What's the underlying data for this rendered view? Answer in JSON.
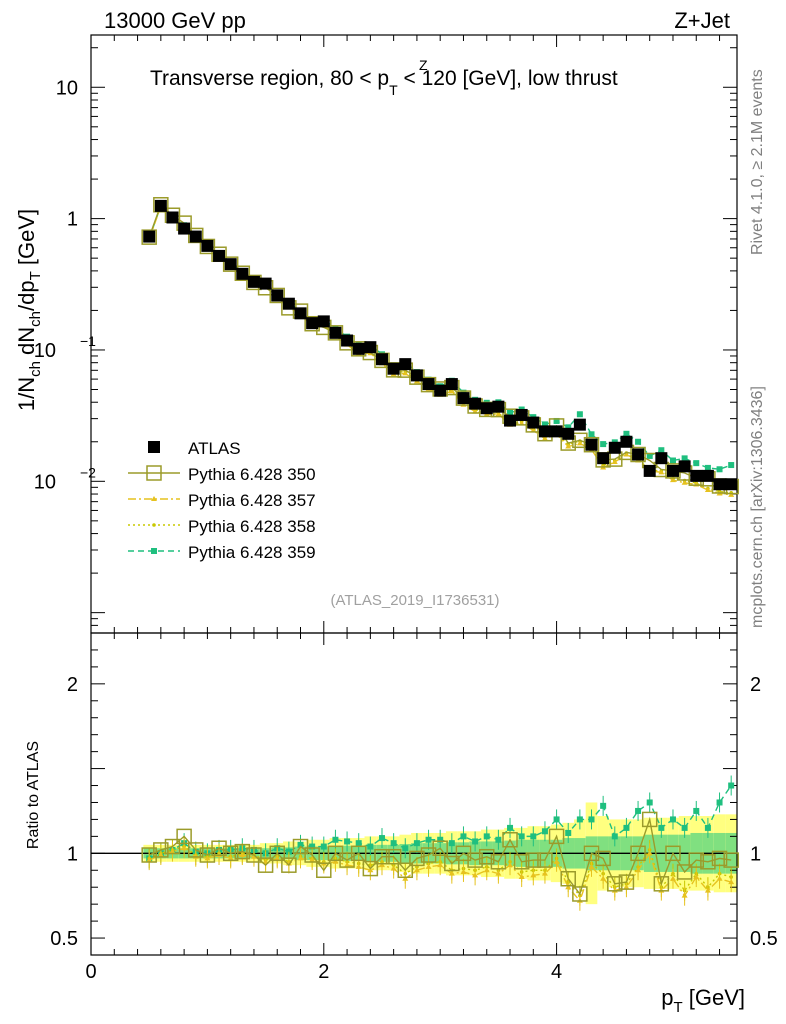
{
  "header": {
    "left": "13000 GeV pp",
    "right": "Z+Jet"
  },
  "side_texts": {
    "rivet": "Rivet 4.1.0, ≥ 2.1M events",
    "mcplots": "mcplots.cern.ch [arXiv:1306.3436]"
  },
  "chart_data": {
    "type": "scatter",
    "title_parts": {
      "pre": "Transverse region, 80 < p",
      "sup": "Z",
      "sub": "T",
      "post": " < 120 [GeV], low thrust"
    },
    "analysis_label": "(ATLAS_2019_I1736531)",
    "ylabel_main": "1/N_ch dN_ch/dp_T [GeV]",
    "ylabel_ratio": "Ratio to ATLAS",
    "xlabel": "p_T [GeV]",
    "xlim": [
      0,
      5.55
    ],
    "ylim_main_log": [
      0.0007,
      25
    ],
    "ylim_ratio": [
      0.4,
      2.3
    ],
    "x_ticks": [
      {
        "v": 0,
        "label": "0"
      },
      {
        "v": 2,
        "label": "2"
      },
      {
        "v": 4,
        "label": "4"
      }
    ],
    "y_ticks_main": [
      {
        "v": 10,
        "label": "10"
      },
      {
        "v": 1,
        "label": "1"
      },
      {
        "v": 0.1,
        "label": "10",
        "exp": "−1"
      },
      {
        "v": 0.01,
        "label": "10",
        "exp": "−2"
      }
    ],
    "y_ticks_ratio": [
      {
        "v": 2,
        "label": "2"
      },
      {
        "v": 1,
        "label": "1"
      },
      {
        "v": 0.5,
        "label": "0.5"
      }
    ],
    "x": [
      0.5,
      0.6,
      0.7,
      0.8,
      0.9,
      1.0,
      1.1,
      1.2,
      1.3,
      1.4,
      1.5,
      1.6,
      1.7,
      1.8,
      1.9,
      2.0,
      2.1,
      2.2,
      2.3,
      2.4,
      2.5,
      2.6,
      2.7,
      2.8,
      2.9,
      3.0,
      3.1,
      3.2,
      3.3,
      3.4,
      3.5,
      3.6,
      3.7,
      3.8,
      3.9,
      4.0,
      4.1,
      4.2,
      4.3,
      4.4,
      4.5,
      4.6,
      4.7,
      4.8,
      4.9,
      5.0,
      5.1,
      5.2,
      5.3,
      5.4,
      5.5
    ],
    "atlas": [
      0.73,
      1.25,
      1.02,
      0.84,
      0.73,
      0.62,
      0.52,
      0.45,
      0.38,
      0.33,
      0.32,
      0.26,
      0.225,
      0.19,
      0.16,
      0.165,
      0.135,
      0.118,
      0.102,
      0.105,
      0.085,
      0.072,
      0.078,
      0.064,
      0.055,
      0.049,
      0.055,
      0.043,
      0.039,
      0.036,
      0.037,
      0.029,
      0.032,
      0.028,
      0.024,
      0.024,
      0.023,
      0.027,
      0.019,
      0.015,
      0.018,
      0.02,
      0.016,
      0.012,
      0.015,
      0.012,
      0.013,
      0.011,
      0.011,
      0.0095,
      0.0095
    ],
    "series": [
      {
        "name": "Pythia 6.428 350",
        "style": "open-square",
        "color": "#9b9b2a",
        "ratio": [
          0.99,
          1.02,
          1.04,
          1.1,
          1.02,
          0.99,
          1.03,
          1.0,
          1.01,
          0.99,
          0.93,
          1.0,
          0.93,
          1.04,
          0.99,
          0.9,
          1.0,
          0.96,
          1.0,
          0.91,
          0.98,
          0.98,
          0.9,
          0.97,
          0.99,
          1.03,
          0.94,
          1.0,
          0.96,
          0.98,
          0.95,
          1.08,
          0.95,
          0.96,
          0.96,
          1.1,
          0.85,
          0.76,
          1.0,
          0.97,
          0.82,
          0.83,
          1.0,
          1.2,
          0.82,
          1.0,
          0.89,
          0.96,
          0.95,
          0.97,
          0.96
        ]
      },
      {
        "name": "Pythia 6.428 357",
        "style": "dash-dot-tri",
        "color": "#e6c21f",
        "ratio": [
          0.96,
          0.99,
          1.01,
          1.03,
          0.98,
          0.97,
          0.99,
          0.97,
          0.99,
          0.98,
          0.95,
          0.97,
          0.94,
          0.97,
          0.96,
          0.94,
          0.95,
          0.93,
          0.92,
          0.9,
          0.93,
          0.91,
          0.85,
          0.9,
          0.92,
          0.93,
          0.88,
          0.89,
          0.87,
          0.9,
          0.88,
          0.93,
          0.86,
          0.87,
          0.88,
          0.95,
          0.8,
          0.72,
          0.92,
          0.85,
          0.78,
          0.8,
          0.9,
          1.0,
          0.78,
          0.85,
          0.75,
          0.86,
          0.78,
          0.85,
          0.83
        ]
      },
      {
        "name": "Pythia 6.428 358",
        "style": "dotted-dot",
        "color": "#c8c800",
        "ratio": [
          0.97,
          1.0,
          1.02,
          1.04,
          0.99,
          0.98,
          1.0,
          0.98,
          1.0,
          0.99,
          0.96,
          0.98,
          0.95,
          0.98,
          0.97,
          0.95,
          0.97,
          0.95,
          0.94,
          0.93,
          0.95,
          0.93,
          0.88,
          0.92,
          0.94,
          0.95,
          0.9,
          0.91,
          0.9,
          0.92,
          0.9,
          0.95,
          0.89,
          0.9,
          0.9,
          0.97,
          0.83,
          0.75,
          0.94,
          0.88,
          0.8,
          0.82,
          0.92,
          1.02,
          0.8,
          0.88,
          0.78,
          0.88,
          0.8,
          0.88,
          0.86
        ]
      },
      {
        "name": "Pythia 6.428 359",
        "style": "dashed-square",
        "color": "#1fbf7f",
        "ratio": [
          0.97,
          1.0,
          1.02,
          1.06,
          1.01,
          1.0,
          1.02,
          1.02,
          1.03,
          1.02,
          1.0,
          1.03,
          1.01,
          1.05,
          1.04,
          1.04,
          1.08,
          1.07,
          1.06,
          1.04,
          1.09,
          1.06,
          1.03,
          1.06,
          1.08,
          1.08,
          1.06,
          1.1,
          1.07,
          1.1,
          1.08,
          1.15,
          1.1,
          1.1,
          1.13,
          1.2,
          1.12,
          1.2,
          1.2,
          1.28,
          1.1,
          1.15,
          1.25,
          1.3,
          1.15,
          1.2,
          1.15,
          1.25,
          1.15,
          1.3,
          1.4
        ]
      }
    ],
    "atlas_band": {
      "inner": [
        0.03,
        0.03,
        0.03,
        0.03,
        0.03,
        0.03,
        0.03,
        0.03,
        0.03,
        0.03,
        0.03,
        0.035,
        0.035,
        0.04,
        0.04,
        0.04,
        0.04,
        0.045,
        0.045,
        0.05,
        0.05,
        0.05,
        0.055,
        0.06,
        0.06,
        0.06,
        0.065,
        0.065,
        0.07,
        0.07,
        0.07,
        0.075,
        0.08,
        0.08,
        0.08,
        0.08,
        0.09,
        0.09,
        0.1,
        0.1,
        0.1,
        0.1,
        0.1,
        0.11,
        0.11,
        0.11,
        0.11,
        0.12,
        0.12,
        0.12,
        0.12
      ],
      "outer": [
        0.05,
        0.05,
        0.05,
        0.05,
        0.05,
        0.05,
        0.05,
        0.05,
        0.05,
        0.05,
        0.06,
        0.06,
        0.07,
        0.07,
        0.08,
        0.08,
        0.09,
        0.09,
        0.09,
        0.1,
        0.1,
        0.1,
        0.11,
        0.12,
        0.12,
        0.12,
        0.13,
        0.13,
        0.13,
        0.14,
        0.14,
        0.15,
        0.15,
        0.16,
        0.16,
        0.17,
        0.18,
        0.2,
        0.3,
        0.22,
        0.2,
        0.2,
        0.2,
        0.21,
        0.21,
        0.21,
        0.22,
        0.22,
        0.22,
        0.23,
        0.23
      ]
    },
    "legend_label": "ATLAS",
    "legend_position": "middle-left"
  }
}
